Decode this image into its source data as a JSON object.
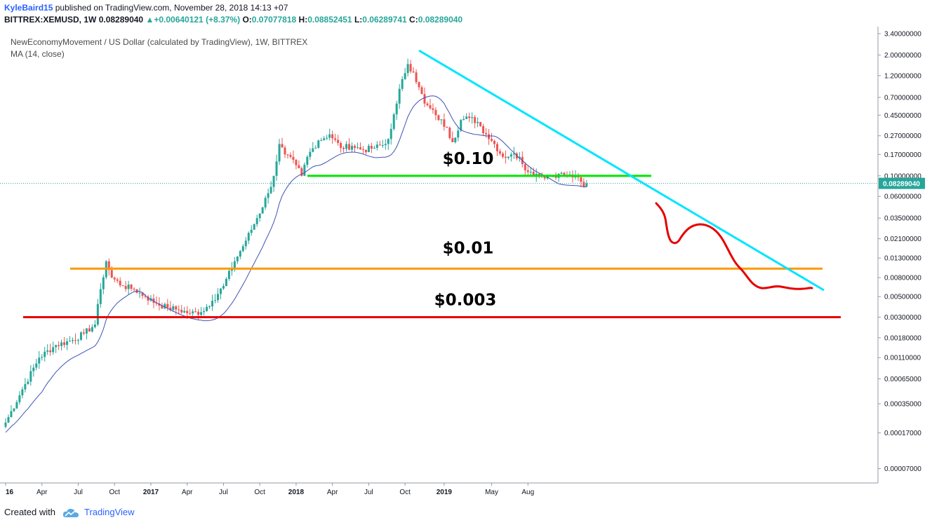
{
  "header": {
    "author": "KyleBaird15",
    "published_text": "published on TradingView.com, November 28, 2018 14:13 +07",
    "symbol": "BITTREX:XEMUSD, 1W",
    "last": "0.08289040",
    "change": "+0.00640121 (+8.37%)",
    "o_label": "O:",
    "o_value": "0.07077818",
    "h_label": "H:",
    "h_value": "0.08852451",
    "l_label": "L:",
    "l_value": "0.06289741",
    "c_label": "C:",
    "c_value": "0.08289040"
  },
  "footer": {
    "created_with": "Created with",
    "brand": "TradingView"
  },
  "colors": {
    "up": "#26a69a",
    "down": "#ef5350",
    "ma": "#3f51b5",
    "trendline": "#00e5ff",
    "support_010": "#00e600",
    "support_001": "#ff9800",
    "support_0003": "#e60000",
    "projection": "#e60000",
    "price_label_bg": "#26a69a"
  },
  "chart_data": {
    "type": "candlestick",
    "title": "NewEconomyMovement / US Dollar (calculated by TradingView), 1W, BITTREX",
    "indicator": "MA (14, close)",
    "y_scale": "log",
    "ylim": [
      5e-05,
      3.4
    ],
    "y_ticks": [
      "3.40000000",
      "2.00000000",
      "1.20000000",
      "0.70000000",
      "0.45000000",
      "0.27000000",
      "0.17000000",
      "0.10000000",
      "0.06000000",
      "0.03500000",
      "0.02100000",
      "0.01300000",
      "0.00800000",
      "0.00500000",
      "0.00300000",
      "0.00180000",
      "0.00110000",
      "0.00065000",
      "0.00035000",
      "0.00017000",
      "0.00007000"
    ],
    "x_ticks": [
      "16",
      "Apr",
      "Jul",
      "Oct",
      "2017",
      "Apr",
      "Jul",
      "Oct",
      "2018",
      "Apr",
      "Jul",
      "Oct",
      "2019",
      "May",
      "Aug"
    ],
    "x_ticks_bold": [
      "16",
      "2017",
      "2018",
      "2019"
    ],
    "current_price": "0.08289040",
    "annotations": [
      {
        "text": "$0.10",
        "value": 0.1
      },
      {
        "text": "$0.01",
        "value": 0.01
      },
      {
        "text": "$0.003",
        "value": 0.003
      }
    ],
    "anchors": [
      [
        0,
        0.00022
      ],
      [
        6,
        0.0005
      ],
      [
        12,
        0.0011
      ],
      [
        18,
        0.0015
      ],
      [
        24,
        0.0017
      ],
      [
        28,
        0.002
      ],
      [
        32,
        0.0025
      ],
      [
        34,
        0.006
      ],
      [
        36,
        0.012
      ],
      [
        38,
        0.008
      ],
      [
        42,
        0.0065
      ],
      [
        46,
        0.006
      ],
      [
        50,
        0.005
      ],
      [
        54,
        0.0042
      ],
      [
        58,
        0.0038
      ],
      [
        62,
        0.0036
      ],
      [
        66,
        0.0033
      ],
      [
        70,
        0.0034
      ],
      [
        74,
        0.0045
      ],
      [
        78,
        0.0065
      ],
      [
        82,
        0.012
      ],
      [
        86,
        0.02
      ],
      [
        90,
        0.035
      ],
      [
        94,
        0.065
      ],
      [
        96,
        0.1
      ],
      [
        98,
        0.22
      ],
      [
        100,
        0.17
      ],
      [
        104,
        0.13
      ],
      [
        106,
        0.1
      ],
      [
        108,
        0.16
      ],
      [
        112,
        0.24
      ],
      [
        116,
        0.28
      ],
      [
        120,
        0.2
      ],
      [
        124,
        0.21
      ],
      [
        128,
        0.19
      ],
      [
        132,
        0.2
      ],
      [
        136,
        0.22
      ],
      [
        138,
        0.32
      ],
      [
        140,
        0.6
      ],
      [
        142,
        1.1
      ],
      [
        144,
        1.6
      ],
      [
        146,
        1.3
      ],
      [
        148,
        0.9
      ],
      [
        150,
        0.6
      ],
      [
        154,
        0.45
      ],
      [
        158,
        0.33
      ],
      [
        160,
        0.23
      ],
      [
        163,
        0.4
      ],
      [
        166,
        0.42
      ],
      [
        169,
        0.38
      ],
      [
        172,
        0.28
      ],
      [
        175,
        0.22
      ],
      [
        178,
        0.16
      ],
      [
        181,
        0.17
      ],
      [
        184,
        0.16
      ],
      [
        187,
        0.11
      ],
      [
        190,
        0.105
      ],
      [
        192,
        0.1
      ],
      [
        195,
        0.1
      ],
      [
        198,
        0.105
      ],
      [
        201,
        0.1
      ],
      [
        204,
        0.098
      ],
      [
        207,
        0.0765
      ],
      [
        208,
        0.0829
      ]
    ]
  }
}
